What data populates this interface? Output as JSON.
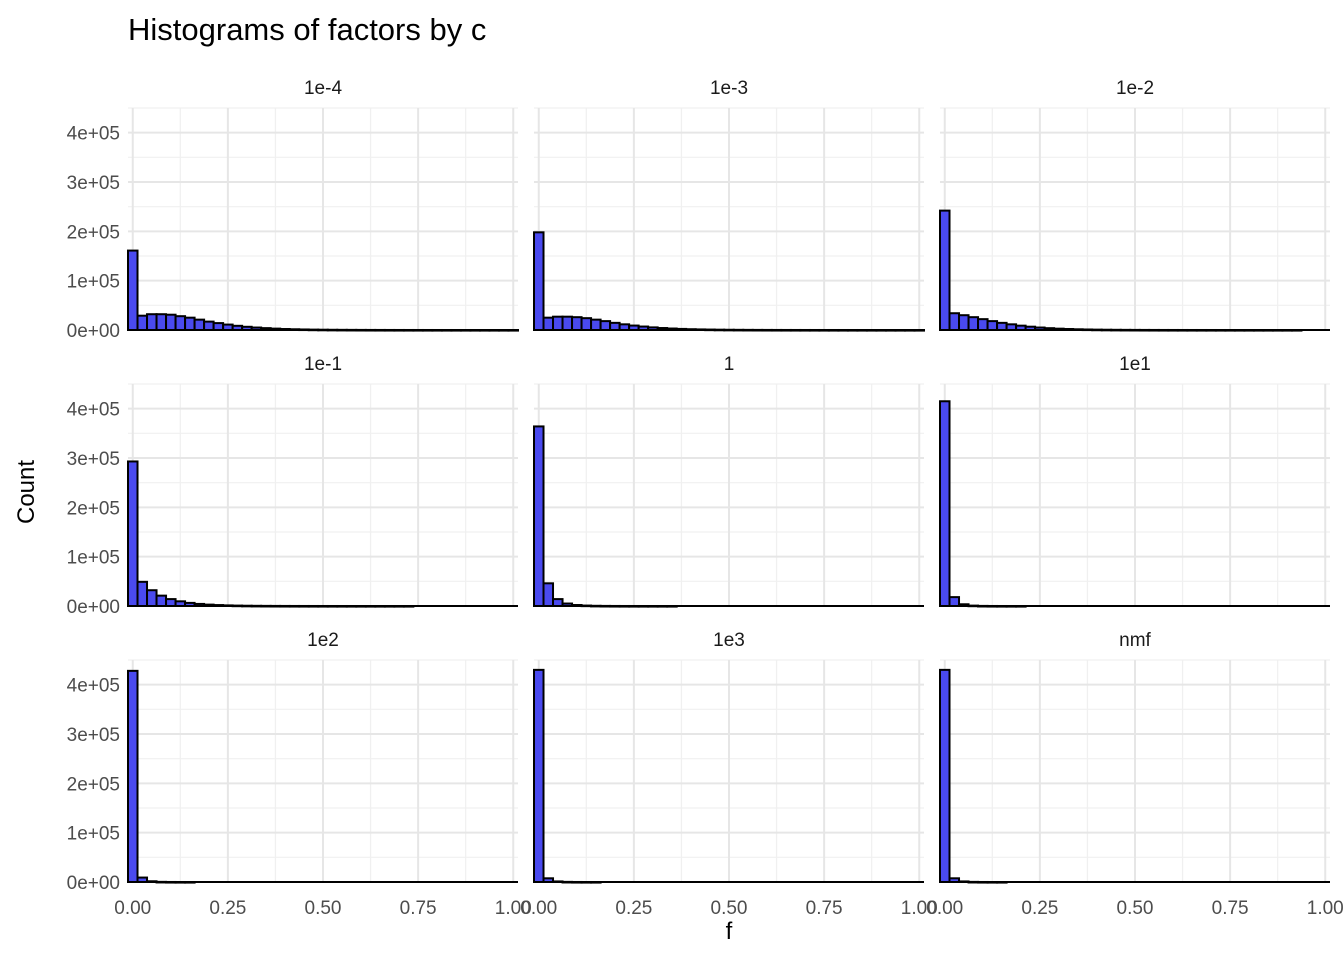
{
  "chart_data": {
    "type": "bar",
    "title": "Histograms of factors by c",
    "xlabel": "f",
    "ylabel": "Count",
    "xlim": [
      -0.0125,
      1.0125
    ],
    "ylim": [
      0,
      450000
    ],
    "bin_width": 0.025,
    "bin_start": -0.0125,
    "x_ticks": [
      0,
      0.25,
      0.5,
      0.75,
      1
    ],
    "x_tick_labels": [
      "0.00",
      "0.25",
      "0.50",
      "0.75",
      "1.00"
    ],
    "y_ticks": [
      0,
      100000,
      200000,
      300000,
      400000
    ],
    "y_tick_labels": [
      "0e+00",
      "1e+05",
      "2e+05",
      "3e+05",
      "4e+05"
    ],
    "grid": true,
    "bar_color": "#4a4aef",
    "bar_edge_color": "#000000",
    "facets": [
      {
        "label": "1e-4",
        "counts": [
          161000,
          29000,
          32000,
          32000,
          31000,
          28000,
          25000,
          21000,
          17000,
          14000,
          11000,
          8500,
          6500,
          5000,
          3800,
          2800,
          2000,
          1500,
          1100,
          800,
          600,
          450,
          330,
          250,
          180,
          130,
          100,
          70,
          50,
          40,
          30,
          20,
          15,
          10,
          8,
          6,
          4,
          3,
          2,
          2,
          1
        ]
      },
      {
        "label": "1e-3",
        "counts": [
          198000,
          25000,
          27000,
          27000,
          26000,
          24000,
          21000,
          18000,
          14500,
          11500,
          9000,
          7000,
          5300,
          4000,
          3000,
          2200,
          1600,
          1200,
          900,
          650,
          480,
          350,
          260,
          190,
          140,
          100,
          75,
          55,
          40,
          30,
          22,
          16,
          12,
          9,
          6,
          4,
          3,
          2,
          2,
          1,
          1
        ]
      },
      {
        "label": "1e-2",
        "counts": [
          242000,
          34000,
          30000,
          26000,
          22000,
          18000,
          14500,
          11500,
          8800,
          6700,
          5000,
          3700,
          2700,
          2000,
          1450,
          1050,
          750,
          540,
          390,
          280,
          200,
          140,
          100,
          70,
          50,
          36,
          26,
          18,
          13,
          9,
          6,
          4,
          3,
          2,
          2,
          1,
          1,
          1,
          0,
          0,
          0
        ]
      },
      {
        "label": "1e-1",
        "counts": [
          293000,
          49000,
          32000,
          21000,
          14000,
          9500,
          6300,
          4200,
          2800,
          1900,
          1250,
          830,
          550,
          370,
          240,
          160,
          110,
          70,
          48,
          32,
          21,
          14,
          9,
          6,
          4,
          3,
          2,
          1,
          1,
          1,
          0,
          0,
          0,
          0,
          0,
          0,
          0,
          0,
          0,
          0,
          0
        ]
      },
      {
        "label": "1",
        "counts": [
          364000,
          46000,
          14000,
          5000,
          2000,
          900,
          400,
          180,
          80,
          36,
          16,
          7,
          3,
          1,
          1,
          0,
          0,
          0,
          0,
          0,
          0,
          0,
          0,
          0,
          0,
          0,
          0,
          0,
          0,
          0,
          0,
          0,
          0,
          0,
          0,
          0,
          0,
          0,
          0,
          0,
          0
        ]
      },
      {
        "label": "1e1",
        "counts": [
          415000,
          18000,
          3500,
          800,
          200,
          50,
          12,
          3,
          1,
          0,
          0,
          0,
          0,
          0,
          0,
          0,
          0,
          0,
          0,
          0,
          0,
          0,
          0,
          0,
          0,
          0,
          0,
          0,
          0,
          0,
          0,
          0,
          0,
          0,
          0,
          0,
          0,
          0,
          0,
          0,
          0
        ]
      },
      {
        "label": "1e2",
        "counts": [
          428000,
          9000,
          1500,
          300,
          60,
          12,
          2,
          0,
          0,
          0,
          0,
          0,
          0,
          0,
          0,
          0,
          0,
          0,
          0,
          0,
          0,
          0,
          0,
          0,
          0,
          0,
          0,
          0,
          0,
          0,
          0,
          0,
          0,
          0,
          0,
          0,
          0,
          0,
          0,
          0,
          0
        ]
      },
      {
        "label": "1e3",
        "counts": [
          430000,
          7500,
          1200,
          250,
          50,
          10,
          2,
          0,
          0,
          0,
          0,
          0,
          0,
          0,
          0,
          0,
          0,
          0,
          0,
          0,
          0,
          0,
          0,
          0,
          0,
          0,
          0,
          0,
          0,
          0,
          0,
          0,
          0,
          0,
          0,
          0,
          0,
          0,
          0,
          0,
          0
        ]
      },
      {
        "label": "nmf",
        "counts": [
          430000,
          7500,
          1200,
          250,
          50,
          10,
          2,
          0,
          0,
          0,
          0,
          0,
          0,
          0,
          0,
          0,
          0,
          0,
          0,
          0,
          0,
          0,
          0,
          0,
          0,
          0,
          0,
          0,
          0,
          0,
          0,
          0,
          0,
          0,
          0,
          0,
          0,
          0,
          0,
          0,
          0
        ]
      }
    ]
  }
}
